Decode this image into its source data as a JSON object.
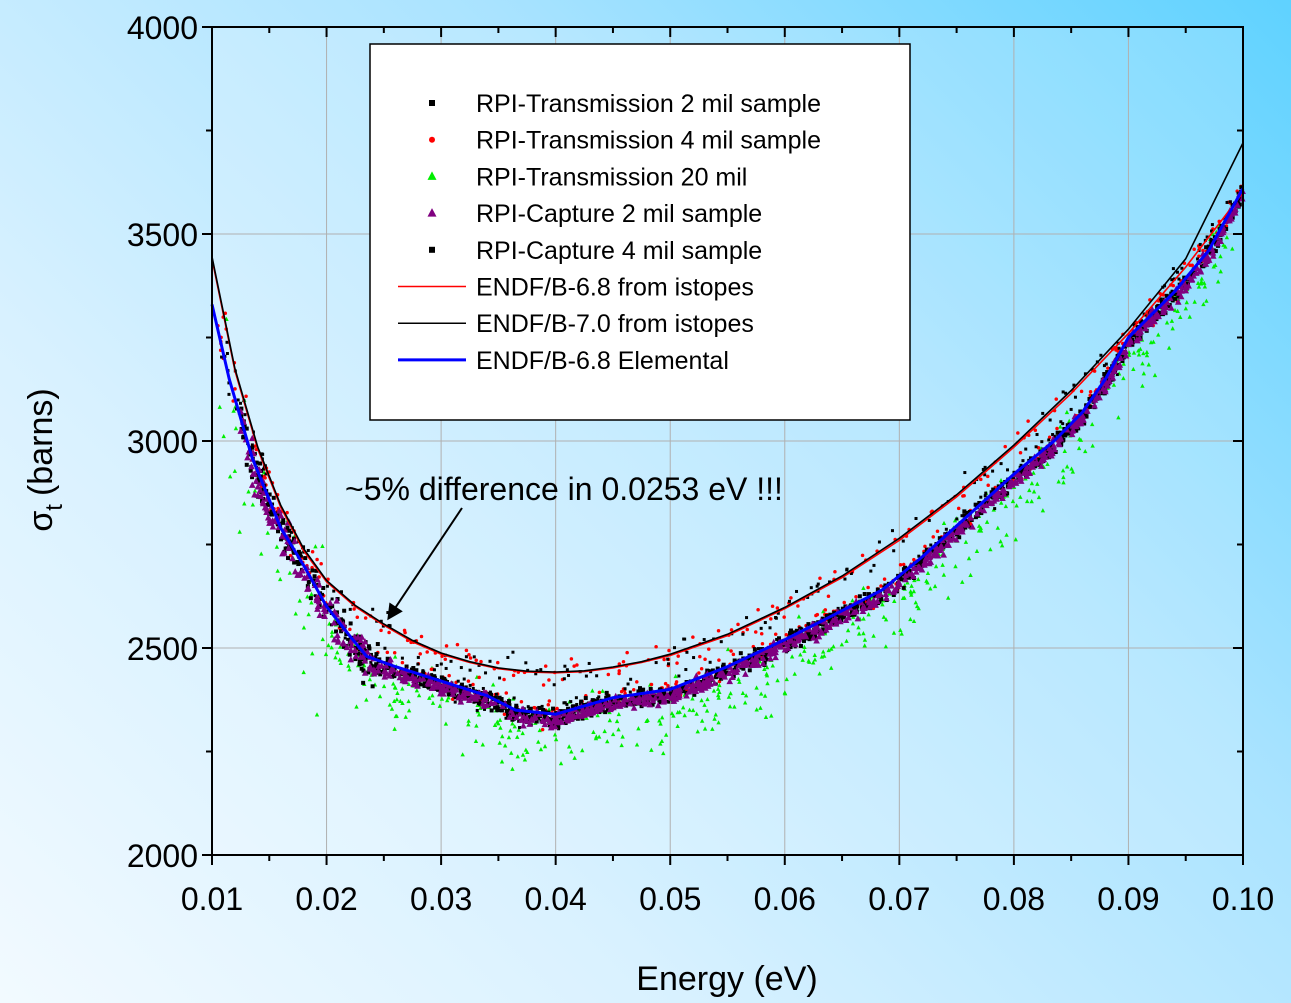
{
  "chart_data": {
    "type": "scatter",
    "xlabel": "Energy (eV)",
    "ylabel": "σ",
    "ylabel_sub": "t",
    "ylabel_unit": "(barns)",
    "xlim": [
      0.01,
      0.1
    ],
    "ylim": [
      2000,
      4000
    ],
    "x_ticks": [
      "0.01",
      "0.02",
      "0.03",
      "0.04",
      "0.05",
      "0.06",
      "0.07",
      "0.08",
      "0.09",
      "0.10"
    ],
    "y_ticks": [
      "2000",
      "2500",
      "3000",
      "3500",
      "4000"
    ],
    "grid": true,
    "legend_position": "top-center",
    "annotation": {
      "text": "~5% difference in 0.0253 eV !!!",
      "arrow_to": [
        0.0253,
        2567
      ]
    },
    "series": [
      {
        "name": "RPI-Transmission 2  mil sample",
        "kind": "scatter",
        "marker": "square",
        "color": "#000000"
      },
      {
        "name": "RPI-Transmission 4  mil sample",
        "kind": "scatter",
        "marker": "circle",
        "color": "#ff0000"
      },
      {
        "name": "RPI-Transmission 20 mil",
        "kind": "scatter",
        "marker": "triangle",
        "color": "#00ee00"
      },
      {
        "name": "RPI-Capture 2  mil sample",
        "kind": "scatter",
        "marker": "triangle",
        "color": "#800080"
      },
      {
        "name": "RPI-Capture 4  mil sample",
        "kind": "scatter",
        "marker": "square",
        "color": "#000000"
      },
      {
        "name": "ENDF/B-6.8 from istopes",
        "kind": "line",
        "color": "#ff0000",
        "x": [
          0.01,
          0.012,
          0.014,
          0.016,
          0.018,
          0.02,
          0.0225,
          0.025,
          0.0275,
          0.03,
          0.0325,
          0.035,
          0.0375,
          0.04,
          0.0425,
          0.045,
          0.0475,
          0.05,
          0.055,
          0.06,
          0.065,
          0.07,
          0.075,
          0.08,
          0.085,
          0.09,
          0.095,
          0.1
        ],
        "y": [
          3440,
          3170,
          2980,
          2840,
          2735,
          2660,
          2600,
          2555,
          2515,
          2485,
          2465,
          2450,
          2442,
          2440,
          2443,
          2452,
          2465,
          2482,
          2530,
          2595,
          2670,
          2760,
          2865,
          2985,
          3115,
          3260,
          3420,
          3600
        ]
      },
      {
        "name": "ENDF/B-7.0 from istopes",
        "kind": "line",
        "color": "#000000",
        "x": [
          0.01,
          0.012,
          0.014,
          0.016,
          0.018,
          0.02,
          0.0225,
          0.025,
          0.0275,
          0.03,
          0.0325,
          0.035,
          0.0375,
          0.04,
          0.0425,
          0.045,
          0.0475,
          0.05,
          0.055,
          0.06,
          0.065,
          0.07,
          0.075,
          0.08,
          0.085,
          0.09,
          0.095,
          0.1
        ],
        "y": [
          3445,
          3175,
          2985,
          2845,
          2740,
          2663,
          2603,
          2558,
          2518,
          2488,
          2467,
          2452,
          2444,
          2442,
          2445,
          2454,
          2467,
          2485,
          2533,
          2598,
          2674,
          2765,
          2870,
          2990,
          3122,
          3270,
          3440,
          3720
        ]
      },
      {
        "name": "ENDF/B-6.8 Elemental",
        "kind": "line",
        "color": "#0000ff",
        "x": [
          0.01,
          0.0115,
          0.0135,
          0.016,
          0.018,
          0.02,
          0.022,
          0.0235,
          0.026,
          0.03,
          0.034,
          0.0365,
          0.04,
          0.045,
          0.05,
          0.055,
          0.06,
          0.065,
          0.0685,
          0.072,
          0.076,
          0.08,
          0.0835,
          0.086,
          0.088,
          0.09,
          0.094,
          0.097,
          0.1
        ],
        "y": [
          3330,
          3150,
          2960,
          2790,
          2700,
          2600,
          2530,
          2480,
          2455,
          2420,
          2385,
          2350,
          2340,
          2380,
          2400,
          2455,
          2520,
          2590,
          2640,
          2720,
          2820,
          2920,
          3000,
          3070,
          3150,
          3250,
          3360,
          3460,
          3610
        ]
      }
    ]
  }
}
